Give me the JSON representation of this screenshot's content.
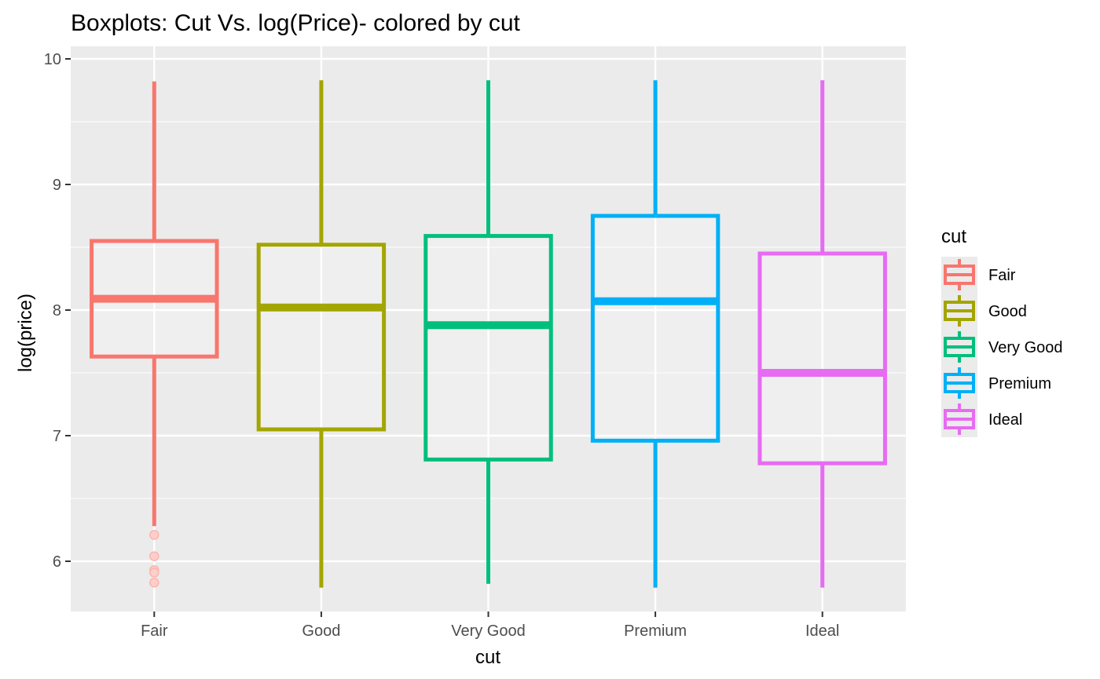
{
  "chart_data": {
    "type": "boxplot",
    "title": "Boxplots: Cut Vs. log(Price)- colored by cut",
    "xlabel": "cut",
    "ylabel": "log(price)",
    "ylim": [
      5.6,
      10.1
    ],
    "yticks": [
      6,
      7,
      8,
      9,
      10
    ],
    "grid": true,
    "legend": {
      "title": "cut",
      "position": "right"
    },
    "categories": [
      "Fair",
      "Good",
      "Very Good",
      "Premium",
      "Ideal"
    ],
    "colors": [
      "#F8766D",
      "#A3A500",
      "#00BF7D",
      "#00B0F6",
      "#E76BF3"
    ],
    "boxes": [
      {
        "min": 6.28,
        "q1": 7.63,
        "median": 8.09,
        "q3": 8.55,
        "max": 9.82,
        "outliers": [
          6.21,
          6.04,
          5.93,
          5.91,
          5.83
        ]
      },
      {
        "min": 5.79,
        "q1": 7.05,
        "median": 8.02,
        "q3": 8.52,
        "max": 9.83,
        "outliers": []
      },
      {
        "min": 5.82,
        "q1": 6.81,
        "median": 7.88,
        "q3": 8.59,
        "max": 9.83,
        "outliers": []
      },
      {
        "min": 5.79,
        "q1": 6.96,
        "median": 8.07,
        "q3": 8.75,
        "max": 9.83,
        "outliers": []
      },
      {
        "min": 5.79,
        "q1": 6.78,
        "median": 7.5,
        "q3": 8.45,
        "max": 9.83,
        "outliers": []
      }
    ]
  }
}
